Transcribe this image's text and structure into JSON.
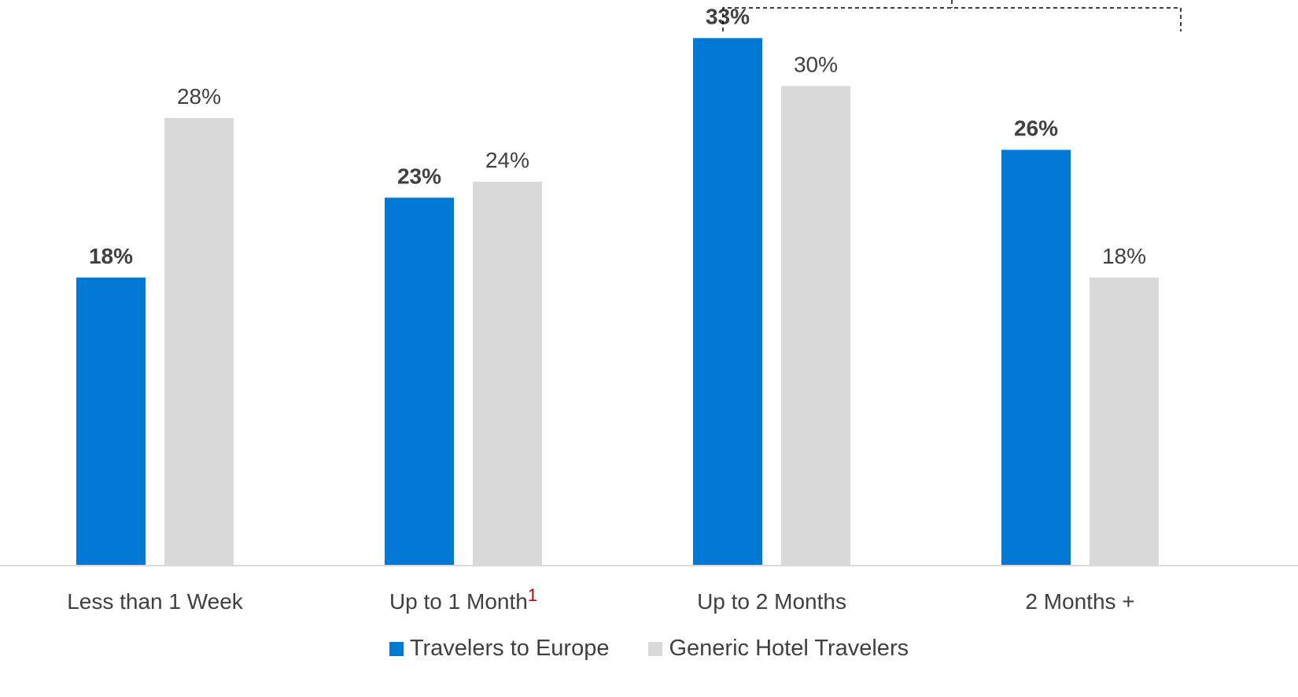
{
  "chart_data": {
    "type": "bar",
    "categories": [
      "Less than 1 Week",
      "Up to 1 Month",
      "Up to 2 Months",
      "2 Months +"
    ],
    "category_footnotes": [
      "",
      "1",
      "",
      ""
    ],
    "series": [
      {
        "name": "Travelers to Europe",
        "values": [
          18,
          23,
          33,
          26
        ],
        "labels": [
          "18%",
          "23%",
          "33%",
          "26%"
        ],
        "color": "#0078d4",
        "label_style": "bold"
      },
      {
        "name": "Generic Hotel Travelers",
        "values": [
          28,
          24,
          30,
          18
        ],
        "labels": [
          "28%",
          "24%",
          "30%",
          "18%"
        ],
        "color": "#d9d9d9",
        "label_style": "regular"
      }
    ],
    "ylim": [
      0,
      36
    ],
    "grid": false,
    "legend_position": "bottom",
    "bracket_over": [
      "Up to 2 Months",
      "2 Months +"
    ],
    "xlabel": "",
    "ylabel": ""
  },
  "colors": {
    "axis": "#d9d9d9",
    "text": "#404040",
    "footnote": "#c00000"
  }
}
